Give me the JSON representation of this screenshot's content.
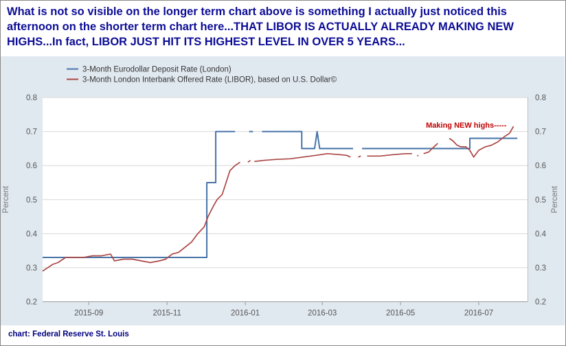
{
  "headline": "What is not so visible on the longer term chart above is something I actually just noticed this afternoon on the shorter term chart here...THAT LIBOR IS ACTUALLY ALREADY MAKING NEW HIGHS...In fact, LIBOR JUST HIT ITS HIGHEST LEVEL IN OVER 5 YEARS...",
  "footer": "chart: Federal Reserve St. Louis",
  "colors": {
    "headline": "#0c0c96",
    "panel": "#e1e9f0",
    "eurodollar": "#4572a7",
    "libor": "#aa4643",
    "annotation": "#c00000"
  },
  "chart_data": {
    "type": "line",
    "title": "",
    "xlabel": "",
    "ylabel": "Percent",
    "ylabel_right": "Percent",
    "ylim": [
      0.2,
      0.8
    ],
    "yticks": [
      "0.2",
      "0.3",
      "0.4",
      "0.5",
      "0.6",
      "0.7",
      "0.8"
    ],
    "xlim": [
      "2015-07-27",
      "2016-08-08"
    ],
    "xticks": [
      "2015-09",
      "2015-11",
      "2016-01",
      "2016-03",
      "2016-05",
      "2016-07"
    ],
    "legend_position": "top-left",
    "grid": "horizontal",
    "annotation": {
      "text": "Making NEW highs-----",
      "x": "2016-07-28",
      "y": 0.715
    },
    "series": [
      {
        "name": "3-Month Eurodollar Deposit Rate (London)",
        "color": "#4572a7",
        "step": true,
        "points": [
          [
            "2015-07-27",
            0.33
          ],
          [
            "2015-12-02",
            0.33
          ],
          [
            "2015-12-02",
            0.55
          ],
          [
            "2015-12-09",
            0.55
          ],
          [
            "2015-12-09",
            0.7
          ],
          [
            "2015-12-24",
            0.7
          ],
          [
            null,
            null
          ],
          [
            "2016-01-04",
            0.7
          ],
          [
            "2016-01-07",
            0.7
          ],
          [
            null,
            null
          ],
          [
            "2016-01-14",
            0.7
          ],
          [
            "2016-02-14",
            0.7
          ],
          [
            "2016-02-14",
            0.65
          ],
          [
            "2016-02-24",
            0.65
          ],
          [
            "2016-02-26",
            0.7
          ],
          [
            "2016-02-28",
            0.65
          ],
          [
            "2016-03-25",
            0.65
          ],
          [
            null,
            null
          ],
          [
            "2016-04-01",
            0.65
          ],
          [
            "2016-06-24",
            0.65
          ],
          [
            "2016-06-24",
            0.68
          ],
          [
            "2016-07-31",
            0.68
          ]
        ]
      },
      {
        "name": "3-Month London Interbank Offered Rate (LIBOR), based on U.S. Dollar©",
        "color": "#aa4643",
        "step": false,
        "points": [
          [
            "2015-07-27",
            0.29
          ],
          [
            "2015-07-29",
            0.295
          ],
          [
            "2015-07-31",
            0.3
          ],
          [
            "2015-08-04",
            0.31
          ],
          [
            "2015-08-08",
            0.315
          ],
          [
            "2015-08-14",
            0.33
          ],
          [
            "2015-08-21",
            0.33
          ],
          [
            "2015-08-28",
            0.33
          ],
          [
            "2015-09-04",
            0.335
          ],
          [
            "2015-09-11",
            0.335
          ],
          [
            "2015-09-18",
            0.34
          ],
          [
            "2015-09-21",
            0.32
          ],
          [
            "2015-09-28",
            0.325
          ],
          [
            "2015-10-05",
            0.325
          ],
          [
            "2015-10-12",
            0.32
          ],
          [
            "2015-10-19",
            0.315
          ],
          [
            "2015-10-26",
            0.32
          ],
          [
            "2015-10-31",
            0.325
          ],
          [
            "2015-11-05",
            0.34
          ],
          [
            "2015-11-10",
            0.345
          ],
          [
            "2015-11-15",
            0.36
          ],
          [
            "2015-11-20",
            0.375
          ],
          [
            "2015-11-25",
            0.4
          ],
          [
            "2015-11-30",
            0.42
          ],
          [
            "2015-12-03",
            0.45
          ],
          [
            "2015-12-07",
            0.48
          ],
          [
            "2015-12-10",
            0.5
          ],
          [
            "2015-12-14",
            0.515
          ],
          [
            "2015-12-17",
            0.55
          ],
          [
            "2015-12-20",
            0.585
          ],
          [
            "2015-12-24",
            0.6
          ],
          [
            "2015-12-28",
            0.61
          ],
          [
            null,
            null
          ],
          [
            "2016-01-03",
            0.61
          ],
          [
            "2016-01-05",
            0.615
          ],
          [
            null,
            null
          ],
          [
            "2016-01-08",
            0.612
          ],
          [
            "2016-01-15",
            0.615
          ],
          [
            "2016-01-25",
            0.618
          ],
          [
            "2016-02-05",
            0.62
          ],
          [
            "2016-02-15",
            0.625
          ],
          [
            "2016-02-25",
            0.63
          ],
          [
            "2016-03-05",
            0.635
          ],
          [
            "2016-03-15",
            0.632
          ],
          [
            "2016-03-20",
            0.63
          ],
          [
            "2016-03-23",
            0.625
          ],
          [
            null,
            null
          ],
          [
            "2016-03-29",
            0.625
          ],
          [
            "2016-03-31",
            0.628
          ],
          [
            null,
            null
          ],
          [
            "2016-04-05",
            0.628
          ],
          [
            "2016-04-15",
            0.628
          ],
          [
            "2016-04-25",
            0.632
          ],
          [
            "2016-05-05",
            0.635
          ],
          [
            "2016-05-10",
            0.635
          ],
          [
            null,
            null
          ],
          [
            "2016-05-14",
            0.628
          ],
          [
            "2016-05-15",
            0.63
          ],
          [
            null,
            null
          ],
          [
            "2016-05-19",
            0.635
          ],
          [
            "2016-05-23",
            0.64
          ],
          [
            "2016-05-27",
            0.655
          ],
          [
            "2016-05-30",
            0.665
          ],
          [
            null,
            null
          ],
          [
            "2016-06-08",
            0.68
          ],
          [
            "2016-06-11",
            0.672
          ],
          [
            "2016-06-14",
            0.66
          ],
          [
            "2016-06-17",
            0.655
          ],
          [
            "2016-06-21",
            0.655
          ],
          [
            "2016-06-24",
            0.645
          ],
          [
            "2016-06-27",
            0.625
          ],
          [
            "2016-07-01",
            0.645
          ],
          [
            "2016-07-06",
            0.655
          ],
          [
            "2016-07-11",
            0.66
          ],
          [
            "2016-07-16",
            0.67
          ],
          [
            "2016-07-21",
            0.685
          ],
          [
            "2016-07-25",
            0.695
          ],
          [
            "2016-07-28",
            0.715
          ]
        ]
      }
    ]
  }
}
